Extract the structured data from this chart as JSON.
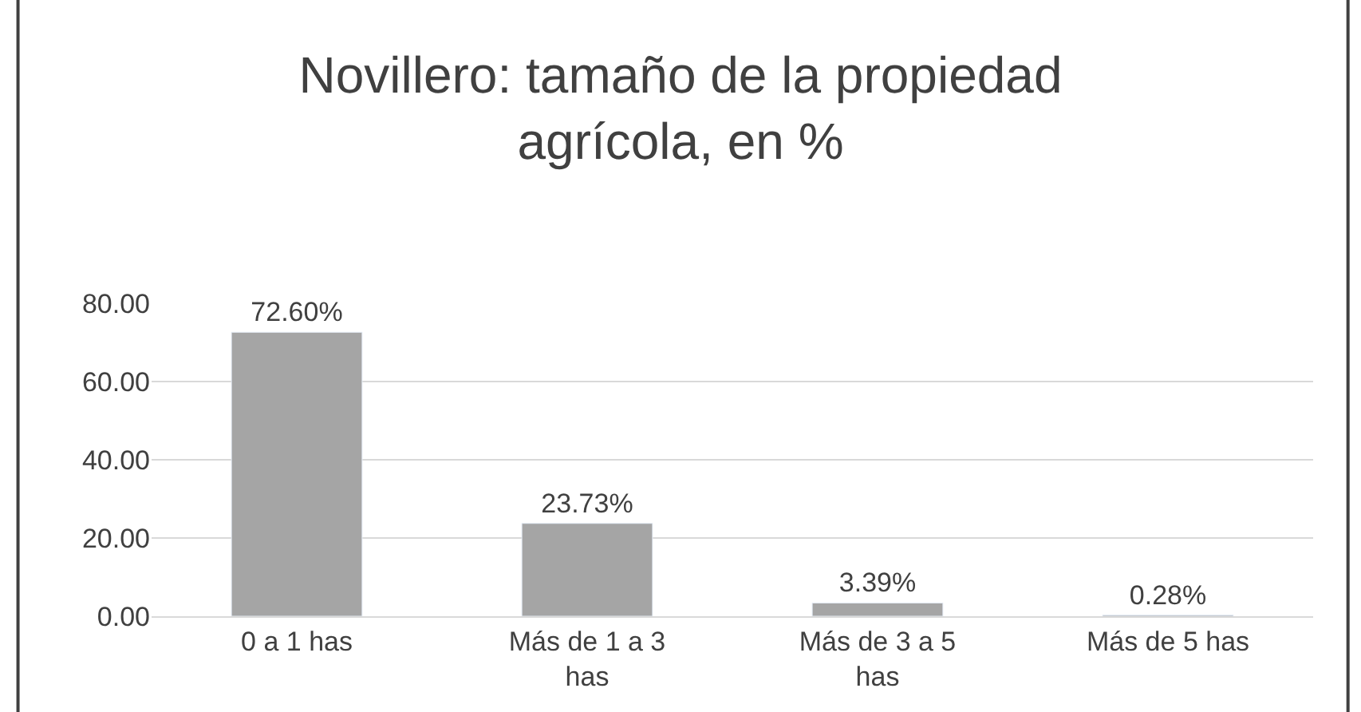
{
  "chart_data": {
    "type": "bar",
    "title": "Novillero: tamaño de la propiedad agrícola, en %",
    "categories": [
      "0 a 1 has",
      "Más de 1 a 3 has",
      "Más de 3 a 5 has",
      "Más de 5 has"
    ],
    "values": [
      72.6,
      23.73,
      3.39,
      0.28
    ],
    "value_labels": [
      "72.60%",
      "23.73%",
      "3.39%",
      "0.28%"
    ],
    "color": "#a5a5a5",
    "ylim": [
      0,
      80
    ],
    "yticks": [
      {
        "value": 0,
        "label": "0.00"
      },
      {
        "value": 20,
        "label": "20.00"
      },
      {
        "value": 40,
        "label": "40.00"
      },
      {
        "value": 60,
        "label": "60.00"
      },
      {
        "value": 80,
        "label": "80.00"
      }
    ],
    "grid": "y",
    "legend": false
  }
}
